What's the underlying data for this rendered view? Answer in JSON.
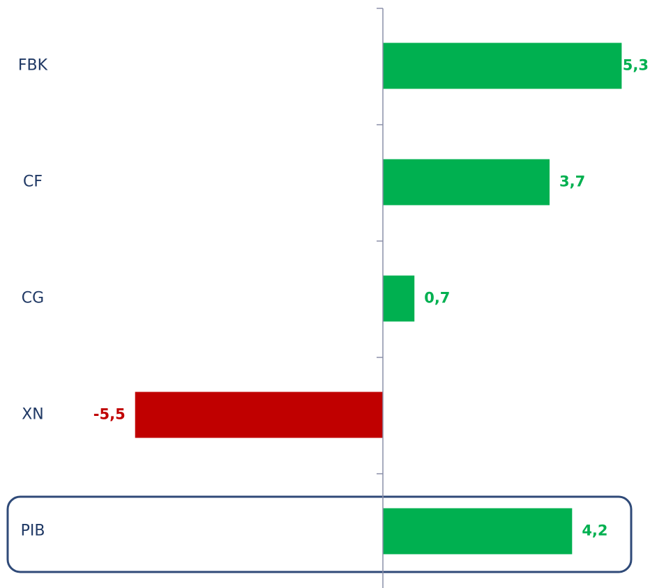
{
  "chart_data": {
    "type": "bar",
    "orientation": "horizontal",
    "categories": [
      "FBK",
      "CF",
      "CG",
      "XN",
      "PIB"
    ],
    "values": [
      5.3,
      3.7,
      0.7,
      -5.5,
      4.2
    ],
    "value_labels": [
      "5,3",
      "3,7",
      "0,7",
      "-5,5",
      "4,2"
    ],
    "colors": [
      "#00b050",
      "#00b050",
      "#00b050",
      "#c00000",
      "#00b050"
    ]
  }
}
